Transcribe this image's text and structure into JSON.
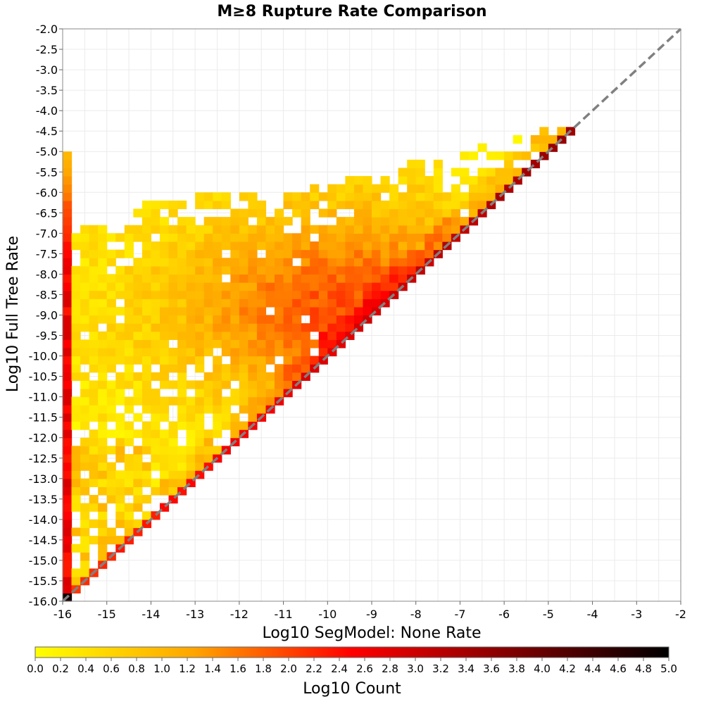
{
  "chart_data": {
    "type": "heatmap",
    "title": "M≥8 Rupture Rate Comparison",
    "xlabel": "Log10 SegModel: None Rate",
    "ylabel": "Log10 Full Tree Rate",
    "xlim": [
      -16,
      -2
    ],
    "ylim": [
      -16,
      -2
    ],
    "x_ticks": [
      "-16",
      "-15",
      "-14",
      "-13",
      "-12",
      "-11",
      "-10",
      "-9",
      "-8",
      "-7",
      "-6",
      "-5",
      "-4",
      "-3",
      "-2"
    ],
    "y_ticks": [
      "-2.0",
      "-2.5",
      "-3.0",
      "-3.5",
      "-4.0",
      "-4.5",
      "-5.0",
      "-5.5",
      "-6.0",
      "-6.5",
      "-7.0",
      "-7.5",
      "-8.0",
      "-8.5",
      "-9.0",
      "-9.5",
      "-10.0",
      "-10.5",
      "-11.0",
      "-11.5",
      "-12.0",
      "-12.5",
      "-13.0",
      "-13.5",
      "-14.0",
      "-14.5",
      "-15.0",
      "-15.5",
      "-16.0"
    ],
    "bin_width": 0.2,
    "grid": true,
    "reference_line": {
      "from": [
        -16,
        -16
      ],
      "to": [
        -2,
        -2
      ],
      "style": "dashed",
      "color": "#808080"
    },
    "colorbar": {
      "label": "Log10 Count",
      "range": [
        0.0,
        5.0
      ],
      "ticks": [
        "0.0",
        "0.2",
        "0.4",
        "0.6",
        "0.8",
        "1.0",
        "1.2",
        "1.4",
        "1.6",
        "1.8",
        "2.0",
        "2.2",
        "2.4",
        "2.6",
        "2.8",
        "3.0",
        "3.2",
        "3.4",
        "3.6",
        "3.8",
        "4.0",
        "4.2",
        "4.4",
        "4.6",
        "4.8",
        "5.0"
      ],
      "colors": [
        "#ffff00",
        "#ffa500",
        "#ff0000",
        "#800000",
        "#000000"
      ],
      "placement": "bottom"
    },
    "regions": [
      {
        "description": "column at x=-16, y from -16 to -5.2",
        "x": -16,
        "y_range": [
          -16.0,
          -5.2
        ],
        "log10_count_range": [
          1.0,
          3.0
        ]
      },
      {
        "description": "diagonal edge y=x",
        "x_range": [
          -15.8,
          -5.0
        ],
        "log10_count_range": [
          1.6,
          3.4
        ]
      },
      {
        "description": "dense core",
        "x_range": [
          -11,
          -8
        ],
        "y_range": [
          -10,
          -8
        ],
        "log10_count_range": [
          1.4,
          2.0
        ]
      },
      {
        "description": "sparse upper fringe",
        "y_range": [
          -7.0,
          -4.2
        ],
        "log10_count_range": [
          0.0,
          0.8
        ]
      },
      {
        "description": "corner bin",
        "x": -16,
        "y": -16,
        "log10_count": 4.8
      }
    ]
  }
}
